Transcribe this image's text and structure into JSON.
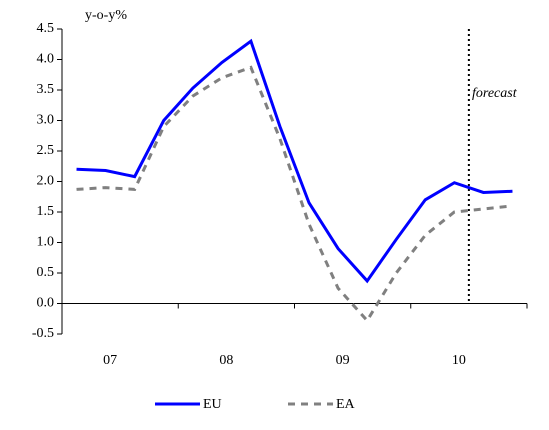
{
  "chart_data": {
    "type": "line",
    "y_label": "y-o-y%",
    "annotation": "forecast",
    "categories": [
      null,
      "07",
      null,
      null,
      null,
      "08",
      null,
      null,
      null,
      "09",
      null,
      null,
      null,
      "10",
      null,
      null
    ],
    "series": [
      {
        "name": "EU",
        "color": "#0000ff",
        "dash": false,
        "values": [
          2.2,
          2.18,
          2.08,
          3.0,
          3.53,
          3.95,
          4.3,
          2.9,
          1.65,
          0.9,
          0.37,
          1.05,
          1.7,
          1.98,
          1.82,
          1.84
        ]
      },
      {
        "name": "EA",
        "color": "#808080",
        "dash": true,
        "values": [
          1.87,
          1.9,
          1.87,
          2.9,
          3.4,
          3.7,
          3.87,
          2.7,
          1.3,
          0.25,
          -0.28,
          0.5,
          1.12,
          1.5,
          1.55,
          1.6
        ]
      }
    ],
    "ylim": [
      -0.5,
      4.5
    ],
    "yticks": [
      -0.5,
      {
        "value": 0,
        "label": "0.0"
      },
      0.5,
      {
        "value": 1,
        "label": "1.0"
      },
      1.5,
      {
        "value": 2,
        "label": "2.0"
      },
      2.5,
      {
        "value": 3,
        "label": "3.0"
      },
      3.5,
      {
        "value": 4,
        "label": "4.0"
      },
      4.5
    ],
    "grid": false
  }
}
